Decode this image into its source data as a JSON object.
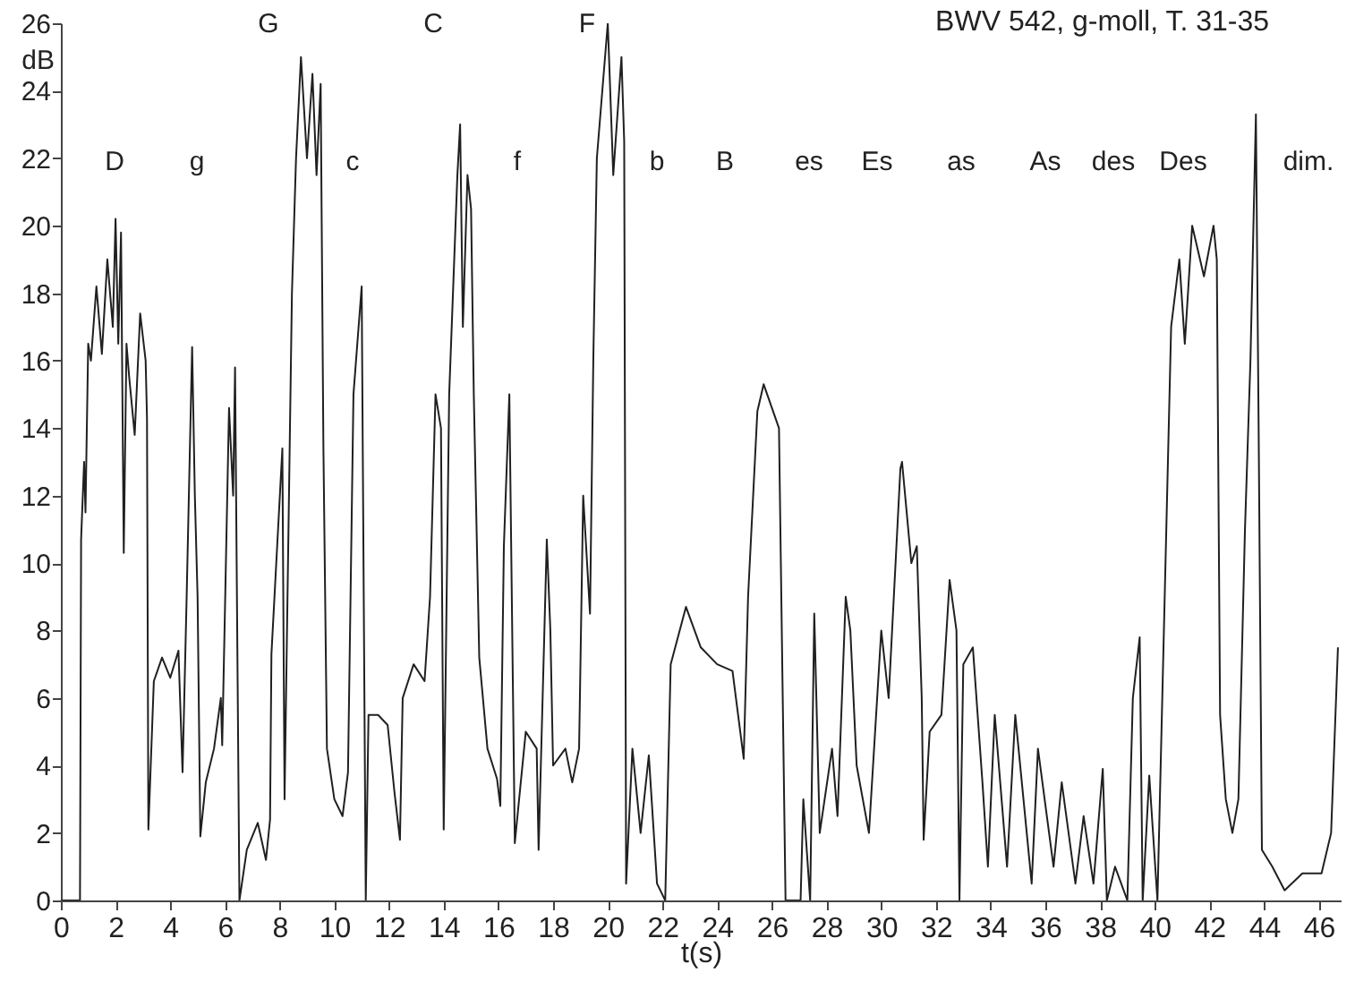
{
  "chart_data": {
    "type": "line",
    "title": "BWV 542, g-moll, T. 31-35",
    "xlabel": "t(s)",
    "ylabel": "dB",
    "xlim": [
      0,
      46.8
    ],
    "ylim": [
      0,
      26
    ],
    "xticks": [
      0,
      2,
      4,
      6,
      8,
      10,
      12,
      14,
      16,
      18,
      20,
      22,
      24,
      26,
      28,
      30,
      32,
      34,
      36,
      38,
      40,
      42,
      44,
      46
    ],
    "yticks": [
      0,
      2,
      4,
      6,
      8,
      10,
      12,
      14,
      16,
      18,
      20,
      22,
      24,
      26
    ],
    "annotations": [
      "D",
      "g",
      "G",
      "c",
      "C",
      "f",
      "F",
      "b",
      "B",
      "es",
      "Es",
      "as",
      "As",
      "des",
      "Des",
      "dim."
    ],
    "series": [
      {
        "color": "#202020",
        "x": [
          0,
          0.7,
          0.74,
          0.85,
          0.9,
          1.0,
          1.1,
          1.3,
          1.5,
          1.7,
          1.9,
          2.0,
          2.1,
          2.2,
          2.3,
          2.4,
          2.5,
          2.7,
          2.9,
          3.1,
          3.15,
          3.2,
          3.4,
          3.7,
          4.0,
          4.3,
          4.45,
          4.6,
          4.8,
          4.9,
          5.0,
          5.1,
          5.3,
          5.6,
          5.85,
          5.9,
          6.15,
          6.3,
          6.37,
          6.53,
          6.8,
          7.2,
          7.5,
          7.65,
          7.7,
          8.1,
          8.18,
          8.45,
          8.6,
          8.78,
          9.0,
          9.2,
          9.35,
          9.5,
          9.6,
          9.73,
          10.0,
          10.3,
          10.5,
          10.7,
          11.0,
          11.15,
          11.25,
          11.6,
          11.95,
          12.2,
          12.4,
          12.5,
          12.9,
          13.3,
          13.5,
          13.7,
          13.9,
          14.0,
          14.2,
          14.5,
          14.6,
          14.7,
          14.87,
          15.0,
          15.1,
          15.3,
          15.6,
          15.95,
          16.07,
          16.2,
          16.4,
          16.6,
          17.0,
          17.4,
          17.47,
          17.77,
          17.9,
          18.0,
          18.45,
          18.7,
          18.95,
          19.1,
          19.35,
          19.47,
          19.6,
          20.0,
          20.2,
          20.5,
          20.6,
          20.67,
          20.9,
          21.2,
          21.5,
          21.8,
          22.1,
          22.3,
          22.86,
          23.4,
          24.0,
          24.56,
          24.97,
          25.13,
          25.47,
          25.7,
          26.26,
          26.5,
          27.05,
          27.15,
          27.4,
          27.55,
          27.75,
          28.2,
          28.4,
          28.7,
          28.87,
          29.1,
          29.55,
          30.0,
          30.27,
          30.7,
          30.76,
          31.1,
          31.3,
          31.48,
          31.55,
          31.77,
          32.2,
          32.5,
          32.75,
          32.86,
          33.0,
          33.35,
          33.7,
          33.9,
          34.15,
          34.6,
          34.9,
          35.5,
          35.73,
          36.3,
          36.6,
          37.1,
          37.4,
          37.76,
          38.1,
          38.25,
          38.55,
          39.0,
          39.2,
          39.45,
          39.56,
          39.8,
          40.1,
          40.35,
          40.6,
          40.9,
          41.1,
          41.37,
          41.8,
          42.15,
          42.27,
          42.39,
          42.6,
          42.84,
          43.06,
          43.3,
          43.5,
          43.7,
          43.8,
          43.92,
          44.3,
          44.75,
          45.4,
          46.1,
          46.45,
          46.7
        ],
        "values": [
          0,
          0,
          10.7,
          13,
          11.5,
          16.5,
          16,
          18.2,
          16.2,
          19,
          17,
          20.2,
          16.5,
          19.8,
          10.3,
          16.5,
          15.5,
          13.8,
          17.4,
          16,
          14.3,
          2.1,
          6.5,
          7.2,
          6.6,
          7.4,
          3.8,
          9,
          16.4,
          12,
          9,
          1.9,
          3.5,
          4.5,
          6,
          4.6,
          14.6,
          12,
          15.8,
          0,
          1.5,
          2.3,
          1.2,
          2.4,
          7.3,
          13.4,
          3,
          18,
          22,
          25,
          22,
          24.5,
          21.5,
          24.2,
          13.5,
          4.5,
          3,
          2.5,
          3.8,
          15,
          18.2,
          0,
          5.5,
          5.5,
          5.2,
          3.2,
          1.8,
          6,
          7,
          6.5,
          9,
          15,
          14,
          2.1,
          15,
          21.5,
          23,
          17,
          21.5,
          20.5,
          15,
          7.2,
          4.5,
          3.6,
          2.8,
          10.5,
          15,
          1.7,
          5,
          4.5,
          1.5,
          10.7,
          8,
          4,
          4.5,
          3.5,
          4.5,
          12,
          8.5,
          16,
          22,
          26,
          21.5,
          25,
          22.5,
          0.5,
          4.5,
          2,
          4.3,
          0.5,
          0,
          7,
          8.7,
          7.5,
          7,
          6.8,
          4.2,
          9,
          14.5,
          15.3,
          14,
          0,
          0,
          3,
          0,
          8.5,
          2,
          4.5,
          2.5,
          9,
          8,
          4,
          2,
          8,
          6,
          12.8,
          13,
          10,
          10.5,
          6,
          1.8,
          5,
          5.5,
          9.5,
          8,
          0,
          7,
          7.5,
          3.5,
          1,
          5.5,
          1,
          5.5,
          0.5,
          4.5,
          1,
          3.5,
          0.5,
          2.5,
          0.5,
          3.9,
          0,
          1,
          0,
          6,
          7.8,
          0,
          3.7,
          0,
          8.5,
          17,
          19,
          16.5,
          20,
          18.5,
          20,
          19,
          5.5,
          3,
          2,
          3,
          11,
          16,
          23.3,
          14,
          1.5,
          1,
          0.3,
          0.8,
          0.8,
          2,
          7.5
        ]
      }
    ]
  }
}
